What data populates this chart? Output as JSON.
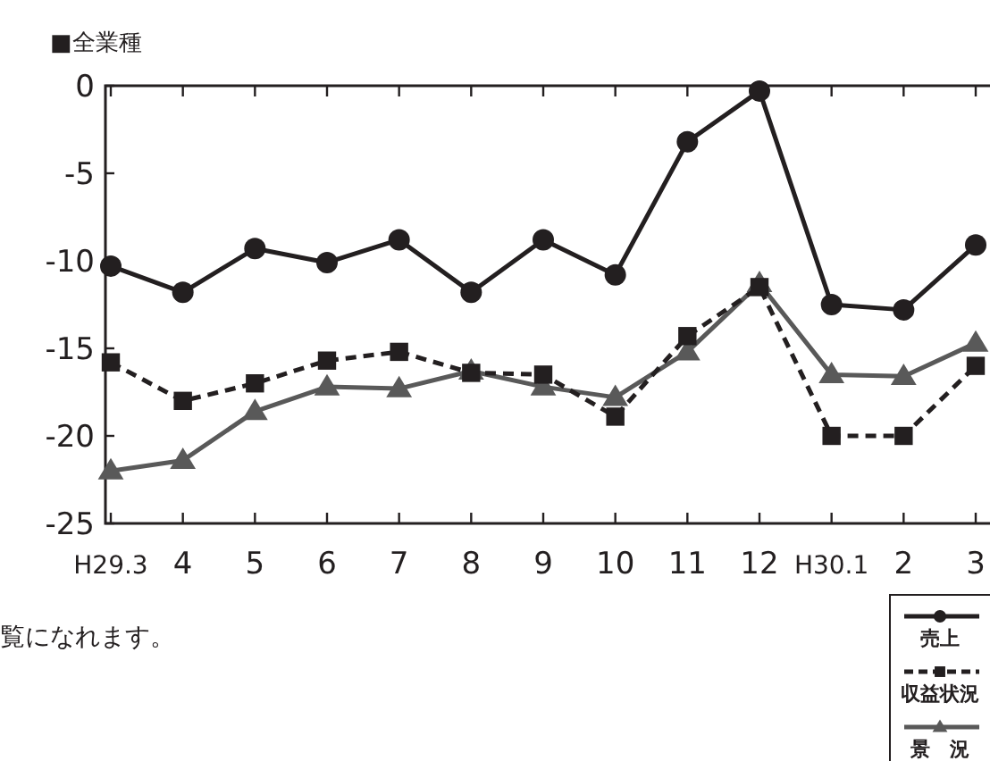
{
  "chart_data": {
    "type": "line",
    "title": "■全業種",
    "categories": [
      "H29.3",
      "4",
      "5",
      "6",
      "7",
      "8",
      "9",
      "10",
      "11",
      "12",
      "H30.1",
      "2",
      "3"
    ],
    "series": [
      {
        "name": "売上",
        "color": "#231f20",
        "marker": "circle",
        "line_style": "solid",
        "values": [
          -10.3,
          -11.8,
          -9.3,
          -10.1,
          -8.8,
          -11.8,
          -8.8,
          -10.8,
          -3.2,
          -0.3,
          -12.5,
          -12.8,
          -9.1
        ]
      },
      {
        "name": "収益状況",
        "color": "#231f20",
        "marker": "square",
        "line_style": "dashed",
        "values": [
          -15.8,
          -18.0,
          -17.0,
          -15.7,
          -15.2,
          -16.4,
          -16.5,
          -18.9,
          -14.3,
          -11.5,
          -20.0,
          -20.0,
          -16.0
        ]
      },
      {
        "name": "景　況",
        "color": "#595959",
        "marker": "triangle",
        "line_style": "solid",
        "values": [
          -22.0,
          -21.4,
          -18.6,
          -17.2,
          -17.3,
          -16.3,
          -17.2,
          -17.8,
          -15.2,
          -11.3,
          -16.5,
          -16.6,
          -14.7
        ]
      }
    ],
    "ylim": [
      -25,
      0
    ],
    "yticks": [
      0,
      -5,
      -10,
      -15,
      -20,
      -25
    ],
    "legend": "bottom right",
    "grid": false,
    "annotations": [
      "覧になれます。"
    ]
  }
}
